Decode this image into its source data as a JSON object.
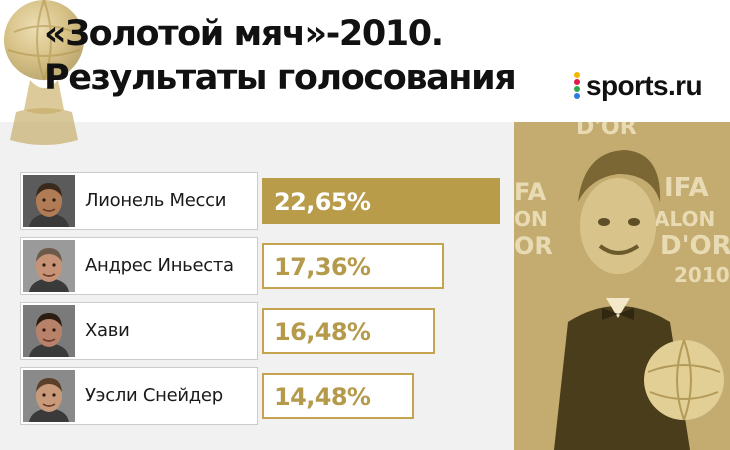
{
  "title": {
    "line1": "«Золотой мяч»-2010.",
    "line2": "Результаты голосования"
  },
  "logo": {
    "text": "sports.ru"
  },
  "colors": {
    "accent_gold": "#b99c4a",
    "text_gold": "#b59a4c",
    "photo_tint": "#c9b277",
    "panel_gray": "#f1f1f1",
    "logo_dots": [
      "#f3b700",
      "#e21a4b",
      "#2fa84f",
      "#2b7be0"
    ]
  },
  "chart_data": {
    "type": "bar",
    "orientation": "horizontal",
    "title": "«Золотой мяч»-2010. Результаты голосования",
    "categories": [
      "Лионель Месси",
      "Андрес Иньеста",
      "Хави",
      "Уэсли Снейдер"
    ],
    "values": [
      22.65,
      17.36,
      16.48,
      14.48
    ],
    "value_labels": [
      "22,65%",
      "17,36%",
      "16,48%",
      "14,48%"
    ],
    "unit": "%",
    "xlim": [
      0,
      25
    ]
  }
}
